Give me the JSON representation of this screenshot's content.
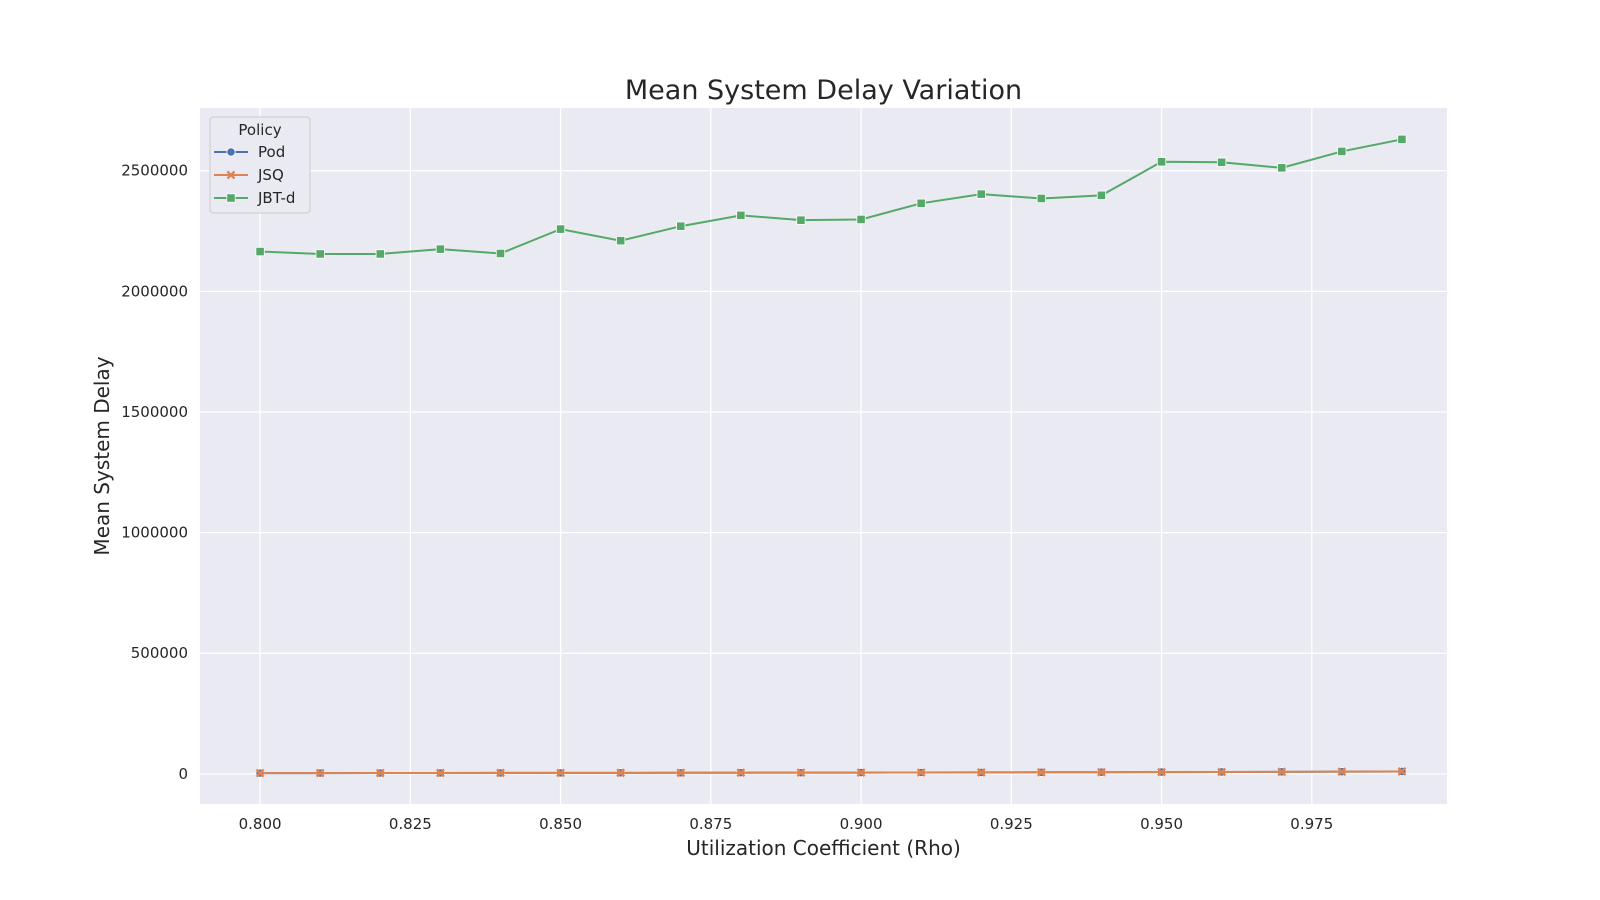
{
  "chart_data": {
    "type": "line",
    "title": "Mean System Delay Variation",
    "xlabel": "Utilization Coefficient (Rho)",
    "ylabel": "Mean System Delay",
    "xlim": [
      0.79,
      0.9975
    ],
    "ylim": [
      -125000,
      2760000
    ],
    "xticks": [
      "0.800",
      "0.825",
      "0.850",
      "0.875",
      "0.900",
      "0.925",
      "0.950",
      "0.975"
    ],
    "yticks": [
      "0",
      "500000",
      "1000000",
      "1500000",
      "2000000",
      "2500000"
    ],
    "grid": true,
    "legend": {
      "title": "Policy",
      "placement": "top-left"
    },
    "x": [
      0.8,
      0.81,
      0.82,
      0.83,
      0.84,
      0.85,
      0.86,
      0.87,
      0.88,
      0.89,
      0.9,
      0.91,
      0.92,
      0.93,
      0.94,
      0.95,
      0.96,
      0.97,
      0.98,
      0.99
    ],
    "series": [
      {
        "name": "Pod",
        "color": "#4c72b0",
        "marker": "circle",
        "values": [
          3000,
          3200,
          3400,
          3600,
          3800,
          4000,
          4200,
          4400,
          4700,
          5000,
          5300,
          5600,
          6000,
          6400,
          6800,
          7200,
          7700,
          8300,
          9000,
          10000
        ]
      },
      {
        "name": "JSQ",
        "color": "#dd8452",
        "marker": "x",
        "values": [
          3000,
          3200,
          3400,
          3600,
          3800,
          4000,
          4200,
          4400,
          4700,
          5000,
          5300,
          5600,
          6000,
          6400,
          6800,
          7200,
          7700,
          8300,
          9000,
          10000
        ]
      },
      {
        "name": "JBT-d",
        "color": "#55a868",
        "marker": "square",
        "values": [
          2165000,
          2155000,
          2155000,
          2175000,
          2157000,
          2258000,
          2210000,
          2270000,
          2315000,
          2295000,
          2298000,
          2365000,
          2403000,
          2385000,
          2398000,
          2537000,
          2535000,
          2512000,
          2580000,
          2630000
        ]
      }
    ]
  }
}
